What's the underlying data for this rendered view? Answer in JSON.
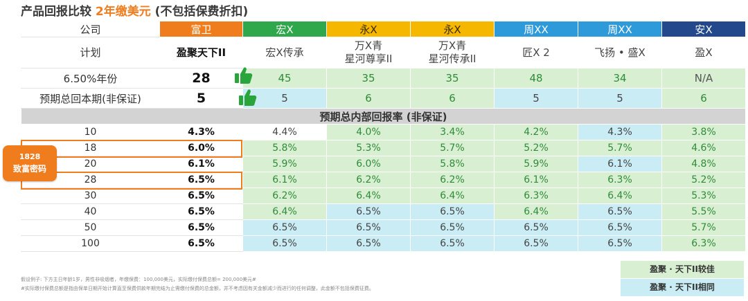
{
  "title": {
    "prefix": "产品回报比较 ",
    "highlight": "2年缴美元",
    "suffix": " (不包括保费折扣)"
  },
  "colors": {
    "fuwei_header": "#ef7d1e",
    "hongx_header": "#2ea84a",
    "yongx_header": "#f6b700",
    "zhouxx_header": "#2f9ad9",
    "anx_header": "#24488c",
    "better_bg": "#d9efd2",
    "same_bg": "#c9ecf5"
  },
  "row_labels": {
    "company": "公司",
    "plan": "计划",
    "breakeven": "6.50%年份",
    "total_return": "预期总回本期(非保证)",
    "irr_section": "预期总内部回报率 (非保证)"
  },
  "companies": [
    {
      "name": "富卫",
      "plan": "盈聚天下II",
      "breakeven": "28",
      "total_return": "5"
    },
    {
      "name": "宏X",
      "plan": "宏X传承",
      "breakeven": "45",
      "total_return": "5"
    },
    {
      "name": "永X",
      "plan": "万X青\n星河尊享II",
      "breakeven": "35",
      "total_return": "6"
    },
    {
      "name": "永X",
      "plan": "万X青\n星河传承II",
      "breakeven": "35",
      "total_return": "6"
    },
    {
      "name": "周XX",
      "plan": "匠X 2",
      "breakeven": "48",
      "total_return": "5"
    },
    {
      "name": "周XX",
      "plan": "飞扬 • 盛X",
      "breakeven": "34",
      "total_return": "5"
    },
    {
      "name": "安X",
      "plan": "盈X",
      "breakeven": "N/A",
      "total_return": "6"
    }
  ],
  "irr_rows": [
    {
      "year": "10",
      "values": [
        "4.3%",
        "4.4%",
        "4.0%",
        "3.4%",
        "4.2%",
        "4.3%",
        "3.8%"
      ]
    },
    {
      "year": "18",
      "values": [
        "6.0%",
        "5.8%",
        "5.3%",
        "5.7%",
        "5.2%",
        "5.7%",
        "4.6%"
      ]
    },
    {
      "year": "20",
      "values": [
        "6.1%",
        "5.9%",
        "6.0%",
        "5.8%",
        "5.9%",
        "6.1%",
        "4.8%"
      ]
    },
    {
      "year": "28",
      "values": [
        "6.5%",
        "6.1%",
        "6.2%",
        "6.2%",
        "6.1%",
        "6.3%",
        "5.2%"
      ]
    },
    {
      "year": "30",
      "values": [
        "6.5%",
        "6.2%",
        "6.4%",
        "6.4%",
        "6.3%",
        "6.4%",
        "5.3%"
      ]
    },
    {
      "year": "40",
      "values": [
        "6.5%",
        "6.4%",
        "6.5%",
        "6.5%",
        "6.4%",
        "6.5%",
        "5.5%"
      ]
    },
    {
      "year": "50",
      "values": [
        "6.5%",
        "6.5%",
        "6.5%",
        "6.5%",
        "6.5%",
        "6.5%",
        "5.7%"
      ]
    },
    {
      "year": "100",
      "values": [
        "6.5%",
        "6.5%",
        "6.5%",
        "6.5%",
        "6.5%",
        "6.5%",
        "6.3%"
      ]
    }
  ],
  "irr_colors": [
    [
      "w",
      "g",
      "g",
      "g",
      "b",
      "g"
    ],
    [
      "g",
      "g",
      "g",
      "g",
      "g",
      "g"
    ],
    [
      "g",
      "g",
      "g",
      "g",
      "b",
      "g"
    ],
    [
      "g",
      "g",
      "g",
      "g",
      "g",
      "g"
    ],
    [
      "g",
      "g",
      "g",
      "g",
      "g",
      "g"
    ],
    [
      "g",
      "b",
      "b",
      "g",
      "b",
      "g"
    ],
    [
      "b",
      "b",
      "b",
      "b",
      "b",
      "g"
    ],
    [
      "b",
      "b",
      "b",
      "b",
      "b",
      "g"
    ]
  ],
  "callout": {
    "line1": "1828",
    "line2": "致富密码"
  },
  "footnotes": {
    "line1": "假设例子: 下方主日年龄1岁，男性非吸烟者，年缴保费：100,000美元，实际缴付保费总额= 200,000美元#",
    "line2": "#实际缴付保费总额是指由保单日期开始计算直至保费供款年期完结为止需缴付保费的总金额，并不考虑因有关金额减少而进行的任何调整，此金额不包括保费征费。"
  },
  "legend": {
    "better": "盈聚 · 天下II较佳",
    "same": "盈聚 · 天下II相同"
  }
}
